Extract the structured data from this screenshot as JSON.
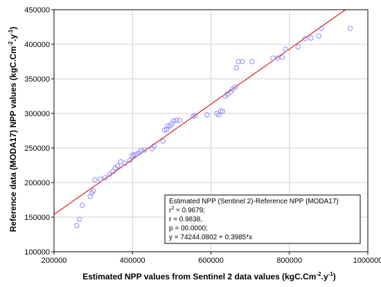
{
  "chart_data": {
    "type": "scatter",
    "xlabel": {
      "main": "Estimated NPP values from Sentinel 2 data  values (kgC.Cm",
      "sup1": "-2",
      "mid": ".y",
      "sup2": "-1",
      "end": ")"
    },
    "ylabel": {
      "main": "Reference data (MODA17) NPP values (kgC.Cm",
      "sup1": "-2",
      "mid": ".y",
      "sup2": "-1",
      "end": ")"
    },
    "xlim": [
      200000,
      1000000
    ],
    "ylim": [
      100000,
      450000
    ],
    "x_ticks": [
      200000,
      400000,
      600000,
      800000,
      1000000
    ],
    "x_tick_labels": [
      "200000",
      "400000",
      "600000",
      "800000",
      "1000000"
    ],
    "y_ticks": [
      100000,
      150000,
      200000,
      250000,
      300000,
      350000,
      400000,
      450000
    ],
    "y_tick_labels": [
      "100000",
      "150000",
      "200000",
      "250000",
      "300000",
      "350000",
      "400000",
      "450000"
    ],
    "grid": true,
    "colors": {
      "points": "#8b8bff",
      "regression_line": "#e0161b",
      "frame": "#000000",
      "grid": "#cfcfcf"
    },
    "series": [
      {
        "points": [
          [
            258000,
            138000
          ],
          [
            265000,
            147000
          ],
          [
            272000,
            167000
          ],
          [
            292000,
            180000
          ],
          [
            296000,
            185000
          ],
          [
            300000,
            188000
          ],
          [
            304000,
            204000
          ],
          [
            318000,
            205000
          ],
          [
            330000,
            207000
          ],
          [
            342000,
            212000
          ],
          [
            350000,
            216000
          ],
          [
            356000,
            221000
          ],
          [
            362000,
            224000
          ],
          [
            370000,
            230000
          ],
          [
            380000,
            228000
          ],
          [
            393000,
            232000
          ],
          [
            398000,
            239000
          ],
          [
            403000,
            240000
          ],
          [
            410000,
            241000
          ],
          [
            416000,
            243000
          ],
          [
            422000,
            246000
          ],
          [
            430000,
            247000
          ],
          [
            450000,
            249000
          ],
          [
            455000,
            253000
          ],
          [
            478000,
            260000
          ],
          [
            482000,
            276000
          ],
          [
            487000,
            277000
          ],
          [
            490000,
            282000
          ],
          [
            496000,
            282000
          ],
          [
            500000,
            285000
          ],
          [
            505000,
            289000
          ],
          [
            512000,
            290000
          ],
          [
            520000,
            290000
          ],
          [
            555000,
            296000
          ],
          [
            560000,
            297000
          ],
          [
            590000,
            298000
          ],
          [
            615000,
            300000
          ],
          [
            620000,
            298000
          ],
          [
            625000,
            303000
          ],
          [
            630000,
            303000
          ],
          [
            637000,
            325000
          ],
          [
            642000,
            328000
          ],
          [
            650000,
            331000
          ],
          [
            655000,
            335000
          ],
          [
            662000,
            338000
          ],
          [
            665000,
            366000
          ],
          [
            670000,
            375000
          ],
          [
            680000,
            375000
          ],
          [
            705000,
            375000
          ],
          [
            758000,
            380000
          ],
          [
            770000,
            380000
          ],
          [
            782000,
            381000
          ],
          [
            790000,
            393000
          ],
          [
            822000,
            396000
          ],
          [
            840000,
            408000
          ],
          [
            855000,
            409000
          ],
          [
            875000,
            412000
          ],
          [
            882000,
            423000
          ],
          [
            955000,
            423000
          ]
        ]
      }
    ],
    "regression": {
      "intercept": 74244.0802,
      "slope": 0.3985
    },
    "stats_box": {
      "title": "Estimated NPP (Sentinel 2)-Reference NPP (MODA17)",
      "r2_label": "r",
      "r2_sup": "2",
      "r2_value": " = 0.9679;",
      "r": "r = 0.9838,",
      "p": " p = 00.0000;",
      "equation": "y = 74244.0802 + 0.3985*x"
    }
  }
}
